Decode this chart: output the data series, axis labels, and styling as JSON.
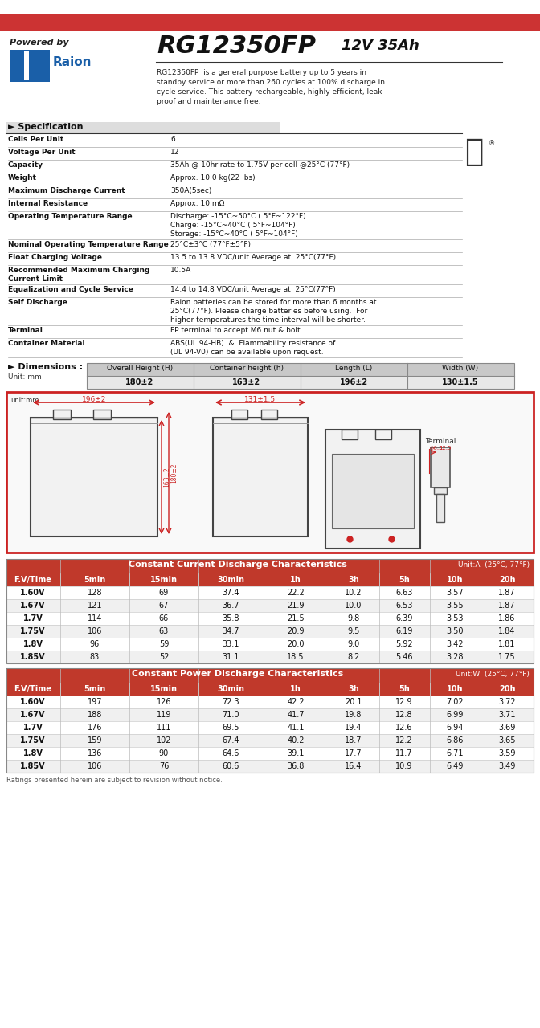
{
  "top_bar_color": "#cc3333",
  "bg_color": "#ffffff",
  "border_color": "#000000",
  "red_border_color": "#cc2222",
  "powered_by": "Powered by",
  "model": "RG12350FP",
  "voltage_ah": "12V 35Ah",
  "description": "RG12350FP  is a general purpose battery up to 5 years in\nstandby service or more than 260 cycles at 100% discharge in\ncycle service. This battery rechargeable, highly efficient, leak\nproof and maintenance free.",
  "spec_title": "► Specification",
  "spec_rows": [
    [
      "Cells Per Unit",
      "6"
    ],
    [
      "Voltage Per Unit",
      "12"
    ],
    [
      "Capacity",
      "35Ah @ 10hr-rate to 1.75V per cell @25°C (77°F)"
    ],
    [
      "Weight",
      "Approx. 10.0 kg(22 lbs)"
    ],
    [
      "Maximum Discharge Current",
      "350A(5sec)"
    ],
    [
      "Internal Resistance",
      "Approx. 10 mΩ"
    ],
    [
      "Operating Temperature Range",
      "Discharge: -15°C~50°C ( 5°F~122°F)\nCharge: -15°C~40°C ( 5°F~104°F)\nStorage: -15°C~40°C ( 5°F~104°F)"
    ],
    [
      "Nominal Operating Temperature Range",
      "25°C±3°C (77°F±5°F)"
    ],
    [
      "Float Charging Voltage",
      "13.5 to 13.8 VDC/unit Average at  25°C(77°F)"
    ],
    [
      "Recommended Maximum Charging\nCurrent Limit",
      "10.5A"
    ],
    [
      "Equalization and Cycle Service",
      "14.4 to 14.8 VDC/unit Average at  25°C(77°F)"
    ],
    [
      "Self Discharge",
      "Raion batteries can be stored for more than 6 months at\n25°C(77°F). Please charge batteries before using.  For\nhigher temperatures the time interval will be shorter."
    ],
    [
      "Terminal",
      "FP terminal to accept M6 nut & bolt"
    ],
    [
      "Container Material",
      "ABS(UL 94-HB)  &  Flammability resistance of\n(UL 94-V0) can be available upon request."
    ]
  ],
  "dim_title": "► Dimensions :",
  "dim_unit": "Unit: mm",
  "dim_headers": [
    "Overall Height (H)",
    "Container height (h)",
    "Length (L)",
    "Width (W)"
  ],
  "dim_values": [
    "180±2",
    "163±2",
    "196±2",
    "130±1.5"
  ],
  "dim_header_bg": "#c8c8c8",
  "dim_value_bg": "#e8e8e8",
  "cc_title": "Constant Current Discharge Characteristics",
  "cc_unit": "Unit:A  (25°C, 77°F)",
  "cc_headers": [
    "F.V/Time",
    "5min",
    "15min",
    "30min",
    "1h",
    "3h",
    "5h",
    "10h",
    "20h"
  ],
  "cc_rows": [
    [
      "1.60V",
      "128",
      "69",
      "37.4",
      "22.2",
      "10.2",
      "6.63",
      "3.57",
      "1.87"
    ],
    [
      "1.67V",
      "121",
      "67",
      "36.7",
      "21.9",
      "10.0",
      "6.53",
      "3.55",
      "1.87"
    ],
    [
      "1.7V",
      "114",
      "66",
      "35.8",
      "21.5",
      "9.8",
      "6.39",
      "3.53",
      "1.86"
    ],
    [
      "1.75V",
      "106",
      "63",
      "34.7",
      "20.9",
      "9.5",
      "6.19",
      "3.50",
      "1.84"
    ],
    [
      "1.8V",
      "96",
      "59",
      "33.1",
      "20.0",
      "9.0",
      "5.92",
      "3.42",
      "1.81"
    ],
    [
      "1.85V",
      "83",
      "52",
      "31.1",
      "18.5",
      "8.2",
      "5.46",
      "3.28",
      "1.75"
    ]
  ],
  "cc_header_bg": "#c0392b",
  "cc_header_fg": "#ffffff",
  "cc_row_bg1": "#ffffff",
  "cc_row_bg2": "#f0f0f0",
  "cp_title": "Constant Power Discharge Characteristics",
  "cp_unit": "Unit:W  (25°C, 77°F)",
  "cp_headers": [
    "F.V/Time",
    "5min",
    "15min",
    "30min",
    "1h",
    "3h",
    "5h",
    "10h",
    "20h"
  ],
  "cp_rows": [
    [
      "1.60V",
      "197",
      "126",
      "72.3",
      "42.2",
      "20.1",
      "12.9",
      "7.02",
      "3.72"
    ],
    [
      "1.67V",
      "188",
      "119",
      "71.0",
      "41.7",
      "19.8",
      "12.8",
      "6.99",
      "3.71"
    ],
    [
      "1.7V",
      "176",
      "111",
      "69.5",
      "41.1",
      "19.4",
      "12.6",
      "6.94",
      "3.69"
    ],
    [
      "1.75V",
      "159",
      "102",
      "67.4",
      "40.2",
      "18.7",
      "12.2",
      "6.86",
      "3.65"
    ],
    [
      "1.8V",
      "136",
      "90",
      "64.6",
      "39.1",
      "17.7",
      "11.7",
      "6.71",
      "3.59"
    ],
    [
      "1.85V",
      "106",
      "76",
      "60.6",
      "36.8",
      "16.4",
      "10.9",
      "6.49",
      "3.49"
    ]
  ],
  "cp_header_bg": "#c0392b",
  "cp_header_fg": "#ffffff",
  "footer": "Ratings presented herein are subject to revision without notice.",
  "diagram_border_color": "#cc2222",
  "diagram_dim_color": "#cc2222"
}
